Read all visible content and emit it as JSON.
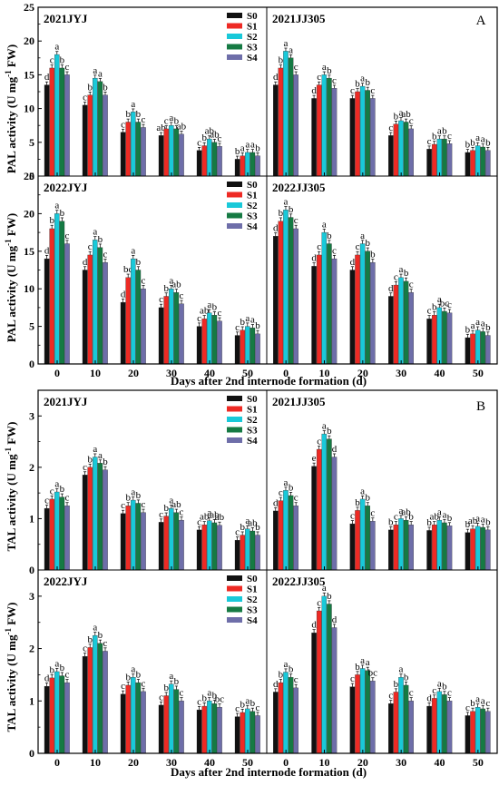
{
  "figure": {
    "letters": [
      "A",
      "B"
    ],
    "xlabel": "Days after 2nd internode formation (d)",
    "ylabel_pal": "PAL activity (U mg",
    "ylabel_tal": "TAL activity (U mg",
    "ylabel_sup": "-1",
    "ylabel_tail": " FW)"
  },
  "legend": {
    "entries": [
      "S0",
      "S1",
      "S2",
      "S3",
      "S4"
    ]
  },
  "colors": {
    "S0": "#111111",
    "S1": "#ee2a24",
    "S2": "#19c9d9",
    "S3": "#157a43",
    "S4": "#6e6ea9"
  },
  "chart_data": [
    {
      "type": "bar",
      "title": "2021JYJ",
      "group": "PAL",
      "categories": [
        "0",
        "10",
        "20",
        "30",
        "40",
        "50"
      ],
      "ylim": [
        0,
        25
      ],
      "yticks": [
        "0",
        "5",
        "10",
        "15",
        "20",
        "25"
      ],
      "series": [
        {
          "name": "S0",
          "values": [
            13.5,
            10.5,
            6.5,
            6.0,
            3.8,
            2.5
          ]
        },
        {
          "name": "S1",
          "values": [
            16.0,
            12.0,
            8.0,
            7.0,
            4.5,
            3.0
          ]
        },
        {
          "name": "S2",
          "values": [
            18.0,
            14.5,
            9.5,
            7.5,
            5.5,
            3.5
          ]
        },
        {
          "name": "S3",
          "values": [
            16.0,
            14.0,
            8.0,
            7.0,
            5.0,
            3.5
          ]
        },
        {
          "name": "S4",
          "values": [
            15.0,
            12.0,
            7.2,
            6.2,
            4.4,
            3.0
          ]
        }
      ],
      "labels": [
        [
          "d",
          "c",
          "a",
          "b",
          "c"
        ],
        [
          "c",
          "b",
          "a",
          "a",
          "b"
        ],
        [
          "c",
          "b",
          "a",
          "b",
          "c"
        ],
        [
          "ab",
          "c",
          "a",
          "b",
          "ab"
        ],
        [
          "c",
          "b",
          "ab",
          "ab",
          "c"
        ],
        [
          "b",
          "a",
          "a",
          "a",
          "b"
        ]
      ]
    },
    {
      "type": "bar",
      "title": "2021JJ305",
      "group": "PAL",
      "categories": [
        "0",
        "10",
        "20",
        "30",
        "40",
        "50"
      ],
      "ylim": [
        0,
        25
      ],
      "yticks": [
        "0",
        "5",
        "10",
        "15",
        "20",
        "25"
      ],
      "series": [
        {
          "name": "S0",
          "values": [
            13.5,
            11.5,
            11.5,
            6.0,
            4.0,
            3.5
          ]
        },
        {
          "name": "S1",
          "values": [
            16.0,
            13.5,
            12.5,
            7.7,
            4.7,
            3.8
          ]
        },
        {
          "name": "S2",
          "values": [
            18.5,
            15.0,
            13.3,
            8.2,
            5.5,
            4.5
          ]
        },
        {
          "name": "S3",
          "values": [
            17.5,
            14.5,
            12.7,
            8.0,
            5.5,
            4.3
          ]
        },
        {
          "name": "S4",
          "values": [
            15.0,
            13.0,
            11.5,
            7.0,
            4.8,
            3.8
          ]
        }
      ],
      "labels": [
        [
          "d",
          "b",
          "a",
          "a",
          "c"
        ],
        [
          "d",
          "c",
          "a",
          "b",
          "c"
        ],
        [
          "c",
          "b",
          "a",
          "b",
          "c"
        ],
        [
          "c",
          "b",
          "a",
          "ab",
          "c"
        ],
        [
          "c",
          "b",
          "a",
          "b",
          "c"
        ],
        [
          "b",
          "b",
          "a",
          "a",
          "b"
        ]
      ]
    },
    {
      "type": "bar",
      "title": "2022JYJ",
      "group": "PAL",
      "categories": [
        "0",
        "10",
        "20",
        "30",
        "40",
        "50"
      ],
      "ylim": [
        0,
        25
      ],
      "yticks": [
        "0",
        "5",
        "10",
        "15",
        "20",
        "25"
      ],
      "series": [
        {
          "name": "S0",
          "values": [
            14.0,
            12.5,
            8.2,
            7.5,
            5.0,
            3.8
          ]
        },
        {
          "name": "S1",
          "values": [
            18.0,
            14.5,
            11.5,
            9.0,
            6.0,
            4.5
          ]
        },
        {
          "name": "S2",
          "values": [
            20.0,
            16.5,
            14.0,
            10.0,
            6.8,
            5.0
          ]
        },
        {
          "name": "S3",
          "values": [
            19.0,
            15.5,
            12.5,
            9.5,
            6.5,
            4.8
          ]
        },
        {
          "name": "S4",
          "values": [
            16.0,
            13.5,
            10.0,
            8.0,
            5.7,
            4.0
          ]
        }
      ],
      "labels": [
        [
          "d",
          "b",
          "a",
          "b",
          "c"
        ],
        [
          "d",
          "c",
          "a",
          "b",
          "c"
        ],
        [
          "d",
          "bc",
          "a",
          "b",
          "c"
        ],
        [
          "c",
          "b",
          "a",
          "ab",
          "c"
        ],
        [
          "c",
          "ab",
          "a",
          "b",
          "c"
        ],
        [
          "c",
          "b",
          "a",
          "a",
          "b"
        ]
      ]
    },
    {
      "type": "bar",
      "title": "2022JJ305",
      "group": "PAL",
      "categories": [
        "0",
        "10",
        "20",
        "30",
        "40",
        "50"
      ],
      "ylim": [
        0,
        25
      ],
      "yticks": [
        "0",
        "5",
        "10",
        "15",
        "20",
        "25"
      ],
      "series": [
        {
          "name": "S0",
          "values": [
            17.0,
            13.0,
            12.5,
            9.0,
            6.0,
            3.5
          ]
        },
        {
          "name": "S1",
          "values": [
            19.0,
            14.5,
            14.5,
            10.5,
            6.5,
            4.0
          ]
        },
        {
          "name": "S2",
          "values": [
            20.5,
            17.5,
            16.0,
            11.5,
            7.5,
            4.5
          ]
        },
        {
          "name": "S3",
          "values": [
            19.5,
            16.0,
            15.0,
            11.0,
            7.0,
            4.3
          ]
        },
        {
          "name": "S4",
          "values": [
            18.0,
            14.0,
            13.5,
            9.5,
            6.8,
            3.8
          ]
        }
      ],
      "labels": [
        [
          "d",
          "b",
          "a",
          "b",
          "c"
        ],
        [
          "d",
          "c",
          "a",
          "b",
          "c"
        ],
        [
          "d",
          "c",
          "a",
          "b",
          "b"
        ],
        [
          "d",
          "c",
          "a",
          "b",
          "c"
        ],
        [
          "c",
          "b",
          "a",
          "bc",
          "c"
        ],
        [
          "b",
          "a",
          "a",
          "a",
          "b"
        ]
      ]
    },
    {
      "type": "bar",
      "title": "2021JYJ",
      "group": "TAL",
      "categories": [
        "0",
        "10",
        "20",
        "30",
        "40",
        "50"
      ],
      "ylim": [
        0,
        3.5
      ],
      "yticks": [
        "0",
        "1",
        "2",
        "3"
      ],
      "series": [
        {
          "name": "S0",
          "values": [
            1.2,
            1.85,
            1.1,
            0.93,
            0.78,
            0.58
          ]
        },
        {
          "name": "S1",
          "values": [
            1.38,
            2.0,
            1.25,
            1.05,
            0.88,
            0.68
          ]
        },
        {
          "name": "S2",
          "values": [
            1.52,
            2.2,
            1.36,
            1.2,
            0.96,
            0.8
          ]
        },
        {
          "name": "S3",
          "values": [
            1.42,
            2.08,
            1.3,
            1.12,
            0.92,
            0.76
          ]
        },
        {
          "name": "S4",
          "values": [
            1.25,
            1.95,
            1.12,
            0.97,
            0.87,
            0.68
          ]
        }
      ],
      "labels": [
        [
          "c",
          "c",
          "a",
          "b",
          "c"
        ],
        [
          "c",
          "b",
          "a",
          "a",
          "b"
        ],
        [
          "c",
          "b",
          "a",
          "b",
          "c"
        ],
        [
          "c",
          "b",
          "a",
          "ab",
          "c"
        ],
        [
          "c",
          "ab",
          "a",
          "ab",
          "ab"
        ],
        [
          "c",
          "b",
          "a",
          "ab",
          "b"
        ]
      ]
    },
    {
      "type": "bar",
      "title": "2021JJ305",
      "group": "TAL",
      "categories": [
        "0",
        "10",
        "20",
        "30",
        "40",
        "50"
      ],
      "ylim": [
        0,
        3.5
      ],
      "yticks": [
        "0",
        "1",
        "2",
        "3"
      ],
      "series": [
        {
          "name": "S0",
          "values": [
            1.15,
            2.02,
            0.9,
            0.78,
            0.77,
            0.73
          ]
        },
        {
          "name": "S1",
          "values": [
            1.35,
            2.35,
            1.16,
            0.88,
            0.88,
            0.8
          ]
        },
        {
          "name": "S2",
          "values": [
            1.55,
            2.65,
            1.38,
            1.0,
            0.97,
            0.85
          ]
        },
        {
          "name": "S3",
          "values": [
            1.45,
            2.55,
            1.25,
            0.97,
            0.92,
            0.83
          ]
        },
        {
          "name": "S4",
          "values": [
            1.25,
            2.2,
            0.95,
            0.88,
            0.86,
            0.78
          ]
        }
      ],
      "labels": [
        [
          "d",
          "c",
          "a",
          "b",
          "c"
        ],
        [
          "e",
          "c",
          "a",
          "b",
          "d"
        ],
        [
          "c",
          "b",
          "a",
          "b",
          "c"
        ],
        [
          "b",
          "c",
          "a",
          "ab",
          "b"
        ],
        [
          "b",
          "ab",
          "a",
          "a",
          "b"
        ],
        [
          "b",
          "ab",
          "a",
          "a",
          "b"
        ]
      ]
    },
    {
      "type": "bar",
      "title": "2022JYJ",
      "group": "TAL",
      "categories": [
        "0",
        "10",
        "20",
        "30",
        "40",
        "50"
      ],
      "ylim": [
        0,
        3.5
      ],
      "yticks": [
        "0",
        "1",
        "2",
        "3"
      ],
      "series": [
        {
          "name": "S0",
          "values": [
            1.28,
            1.85,
            1.13,
            0.92,
            0.83,
            0.7
          ]
        },
        {
          "name": "S1",
          "values": [
            1.44,
            2.02,
            1.3,
            1.1,
            0.9,
            0.78
          ]
        },
        {
          "name": "S2",
          "values": [
            1.56,
            2.25,
            1.45,
            1.32,
            1.0,
            0.85
          ]
        },
        {
          "name": "S3",
          "values": [
            1.48,
            2.1,
            1.35,
            1.22,
            0.95,
            0.8
          ]
        },
        {
          "name": "S4",
          "values": [
            1.35,
            1.95,
            1.18,
            1.0,
            0.88,
            0.72
          ]
        }
      ],
      "labels": [
        [
          "d",
          "b",
          "a",
          "b",
          "c"
        ],
        [
          "c",
          "b",
          "a",
          "b",
          "c"
        ],
        [
          "c",
          "b",
          "a",
          "b",
          "c"
        ],
        [
          "c",
          "b",
          "a",
          "b",
          "c"
        ],
        [
          "c",
          "b",
          "a",
          "b",
          "bc"
        ],
        [
          "c",
          "b",
          "a",
          "b",
          "c"
        ]
      ]
    },
    {
      "type": "bar",
      "title": "2022JJ305",
      "group": "TAL",
      "categories": [
        "0",
        "10",
        "20",
        "30",
        "40",
        "50"
      ],
      "ylim": [
        0,
        3.5
      ],
      "yticks": [
        "0",
        "1",
        "2",
        "3"
      ],
      "series": [
        {
          "name": "S0",
          "values": [
            1.17,
            2.3,
            1.27,
            0.95,
            0.9,
            0.72
          ]
        },
        {
          "name": "S1",
          "values": [
            1.35,
            2.72,
            1.5,
            1.17,
            1.05,
            0.8
          ]
        },
        {
          "name": "S2",
          "values": [
            1.55,
            3.0,
            1.62,
            1.45,
            1.18,
            0.88
          ]
        },
        {
          "name": "S3",
          "values": [
            1.45,
            2.85,
            1.58,
            1.3,
            1.12,
            0.85
          ]
        },
        {
          "name": "S4",
          "values": [
            1.25,
            2.4,
            1.38,
            1.0,
            1.0,
            0.8
          ]
        }
      ],
      "labels": [
        [
          "d",
          "b",
          "a",
          "b",
          "c"
        ],
        [
          "d",
          "c",
          "a",
          "b",
          "d"
        ],
        [
          "c",
          "b",
          "a",
          "a",
          "bc"
        ],
        [
          "c",
          "b",
          "a",
          "b",
          "c"
        ],
        [
          "d",
          "c",
          "a",
          "b",
          "c"
        ],
        [
          "c",
          "b",
          "a",
          "a",
          "c"
        ]
      ]
    }
  ]
}
